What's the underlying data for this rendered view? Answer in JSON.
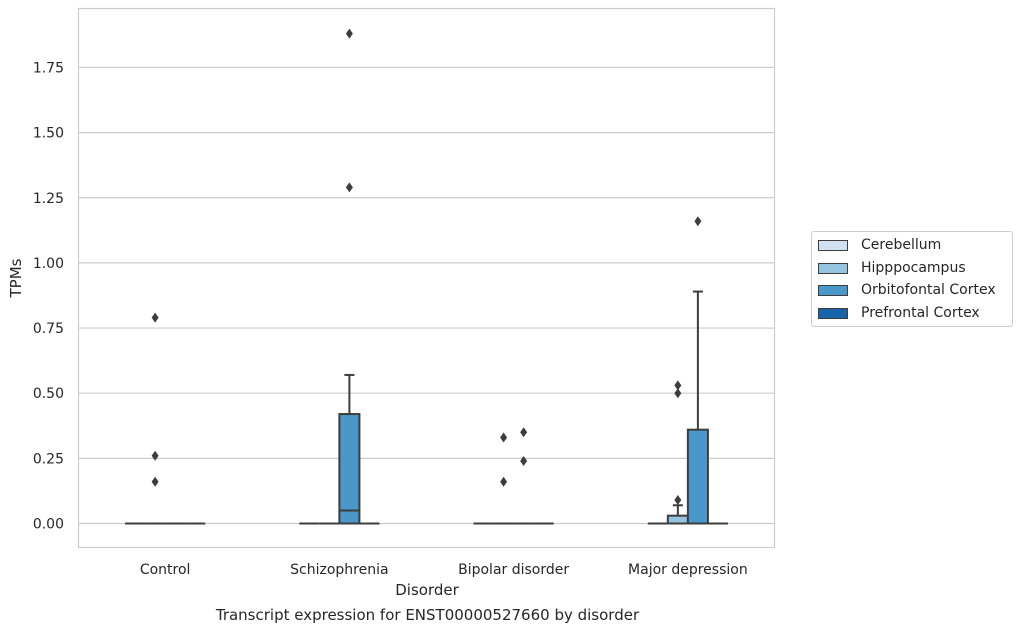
{
  "chart_data": {
    "type": "box",
    "caption": "Transcript expression for ENST00000527660 by disorder",
    "xlabel": "Disorder",
    "ylabel": "TPMs",
    "ylim": [
      -0.09,
      1.97
    ],
    "yticks": [
      0.0,
      0.25,
      0.5,
      0.75,
      1.0,
      1.25,
      1.5,
      1.75
    ],
    "ytick_labels": [
      "0.00",
      "0.25",
      "0.50",
      "0.75",
      "1.00",
      "1.25",
      "1.50",
      "1.75"
    ],
    "grid": true,
    "legend_position": "right",
    "categories": [
      "Control",
      "Schizophrenia",
      "Bipolar disorder",
      "Major depression"
    ],
    "series": [
      {
        "name": "Cerebellum",
        "color": "#d0e1f2",
        "boxes": [
          {
            "category": "Control",
            "q1": 0,
            "median": 0,
            "q3": 0,
            "whisker_low": 0,
            "whisker_high": 0,
            "outliers": []
          },
          {
            "category": "Schizophrenia",
            "q1": 0,
            "median": 0,
            "q3": 0,
            "whisker_low": 0,
            "whisker_high": 0,
            "outliers": []
          },
          {
            "category": "Bipolar disorder",
            "q1": 0,
            "median": 0,
            "q3": 0,
            "whisker_low": 0,
            "whisker_high": 0,
            "outliers": []
          },
          {
            "category": "Major depression",
            "q1": 0,
            "median": 0,
            "q3": 0,
            "whisker_low": 0,
            "whisker_high": 0,
            "outliers": []
          }
        ]
      },
      {
        "name": "Hipppocampus",
        "color": "#94c4df",
        "boxes": [
          {
            "category": "Control",
            "q1": 0,
            "median": 0,
            "q3": 0,
            "whisker_low": 0,
            "whisker_high": 0,
            "outliers": [
              0.79,
              0.26,
              0.16
            ]
          },
          {
            "category": "Schizophrenia",
            "q1": 0,
            "median": 0,
            "q3": 0,
            "whisker_low": 0,
            "whisker_high": 0,
            "outliers": []
          },
          {
            "category": "Bipolar disorder",
            "q1": 0,
            "median": 0,
            "q3": 0,
            "whisker_low": 0,
            "whisker_high": 0,
            "outliers": [
              0.33,
              0.16
            ]
          },
          {
            "category": "Major depression",
            "q1": 0,
            "median": 0,
            "q3": 0.03,
            "whisker_low": 0,
            "whisker_high": 0.07,
            "outliers": [
              0.53,
              0.5,
              0.09
            ]
          }
        ]
      },
      {
        "name": "Orbitofontal Cortex",
        "color": "#4a98c9",
        "boxes": [
          {
            "category": "Control",
            "q1": 0,
            "median": 0,
            "q3": 0,
            "whisker_low": 0,
            "whisker_high": 0,
            "outliers": []
          },
          {
            "category": "Schizophrenia",
            "q1": 0,
            "median": 0.05,
            "q3": 0.42,
            "whisker_low": 0,
            "whisker_high": 0.57,
            "outliers": [
              1.88,
              1.29
            ]
          },
          {
            "category": "Bipolar disorder",
            "q1": 0,
            "median": 0,
            "q3": 0,
            "whisker_low": 0,
            "whisker_high": 0,
            "outliers": [
              0.35,
              0.24
            ]
          },
          {
            "category": "Major depression",
            "q1": 0,
            "median": 0,
            "q3": 0.36,
            "whisker_low": 0,
            "whisker_high": 0.89,
            "outliers": [
              1.16
            ]
          }
        ]
      },
      {
        "name": "Prefrontal Cortex",
        "color": "#1764ab",
        "boxes": [
          {
            "category": "Control",
            "q1": 0,
            "median": 0,
            "q3": 0,
            "whisker_low": 0,
            "whisker_high": 0,
            "outliers": []
          },
          {
            "category": "Schizophrenia",
            "q1": 0,
            "median": 0,
            "q3": 0,
            "whisker_low": 0,
            "whisker_high": 0,
            "outliers": []
          },
          {
            "category": "Bipolar disorder",
            "q1": 0,
            "median": 0,
            "q3": 0,
            "whisker_low": 0,
            "whisker_high": 0,
            "outliers": []
          },
          {
            "category": "Major depression",
            "q1": 0,
            "median": 0,
            "q3": 0,
            "whisker_low": 0,
            "whisker_high": 0,
            "outliers": []
          }
        ]
      }
    ]
  }
}
